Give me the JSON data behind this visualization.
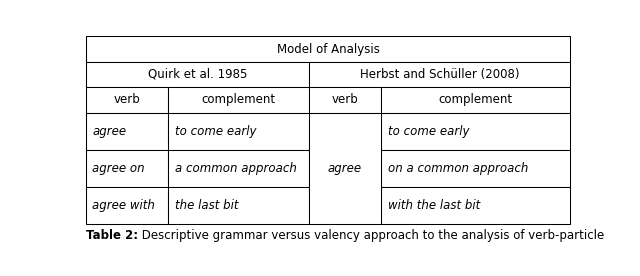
{
  "title": "Model of Analysis",
  "col_groups": [
    {
      "label": "Quirk et al. 1985"
    },
    {
      "label": "Herbst and Schüller (2008)"
    }
  ],
  "col_headers": [
    "verb",
    "complement",
    "verb",
    "complement"
  ],
  "rows": [
    [
      "agree",
      "to come early",
      "",
      "to come early"
    ],
    [
      "agree on",
      "a common approach",
      "agree",
      "on a common approach"
    ],
    [
      "agree with",
      "the last bit",
      "",
      "with the last bit"
    ]
  ],
  "caption_bold": "Table 2:",
  "caption_rest": " Descriptive grammar versus valency approach to the analysis of verb-particle",
  "background": "#ffffff",
  "border_color": "#000000",
  "text_color": "#000000",
  "header_fontsize": 8.5,
  "cell_fontsize": 8.5,
  "caption_fontsize": 8.5
}
